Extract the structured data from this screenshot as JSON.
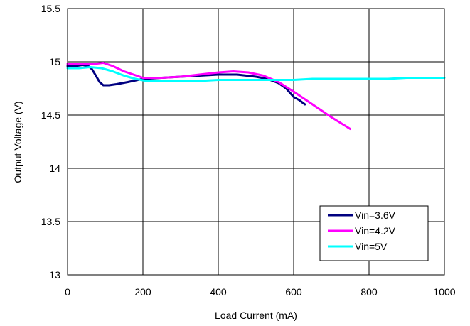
{
  "chart_data": {
    "type": "line",
    "title": "",
    "xlabel": "Load Current (mA)",
    "ylabel": "Output Voltage (V)",
    "xlim": [
      0,
      1000
    ],
    "ylim": [
      13,
      15.5
    ],
    "xticks": [
      0,
      200,
      400,
      600,
      800,
      1000
    ],
    "xtick_labels": [
      "0",
      "200",
      "400",
      "600",
      "800",
      "1000"
    ],
    "yticks": [
      13,
      13.5,
      14,
      14.5,
      15,
      15.5
    ],
    "ytick_labels": [
      "13",
      "13.5",
      "14",
      "14.5",
      "15",
      "15.5"
    ],
    "grid": true,
    "legend_position": "bottom-right",
    "series": [
      {
        "name": "Vin=3.6V",
        "color": "#000080",
        "x": [
          0,
          20,
          40,
          55,
          65,
          75,
          85,
          95,
          110,
          130,
          160,
          200,
          250,
          300,
          350,
          400,
          450,
          500,
          530,
          560,
          580,
          600,
          615,
          630
        ],
        "y": [
          14.96,
          14.96,
          14.97,
          14.96,
          14.93,
          14.87,
          14.81,
          14.78,
          14.78,
          14.79,
          14.81,
          14.84,
          14.85,
          14.86,
          14.87,
          14.88,
          14.88,
          14.86,
          14.84,
          14.8,
          14.75,
          14.67,
          14.64,
          14.6
        ]
      },
      {
        "name": "Vin=4.2V",
        "color": "#ff00ff",
        "x": [
          0,
          40,
          70,
          95,
          120,
          150,
          200,
          250,
          300,
          350,
          400,
          440,
          480,
          520,
          560,
          600,
          650,
          700,
          750
        ],
        "y": [
          14.98,
          14.98,
          14.98,
          14.99,
          14.96,
          14.91,
          14.85,
          14.85,
          14.86,
          14.88,
          14.9,
          14.91,
          14.9,
          14.87,
          14.81,
          14.72,
          14.6,
          14.48,
          14.37
        ]
      },
      {
        "name": "Vin=5V",
        "color": "#00ffff",
        "x": [
          0,
          30,
          60,
          90,
          120,
          150,
          180,
          210,
          240,
          300,
          350,
          400,
          450,
          500,
          550,
          600,
          650,
          700,
          750,
          800,
          850,
          900,
          950,
          1000
        ],
        "y": [
          14.94,
          14.94,
          14.95,
          14.94,
          14.91,
          14.87,
          14.84,
          14.82,
          14.82,
          14.82,
          14.82,
          14.83,
          14.83,
          14.83,
          14.83,
          14.83,
          14.84,
          14.84,
          14.84,
          14.84,
          14.84,
          14.85,
          14.85,
          14.85
        ]
      }
    ]
  }
}
